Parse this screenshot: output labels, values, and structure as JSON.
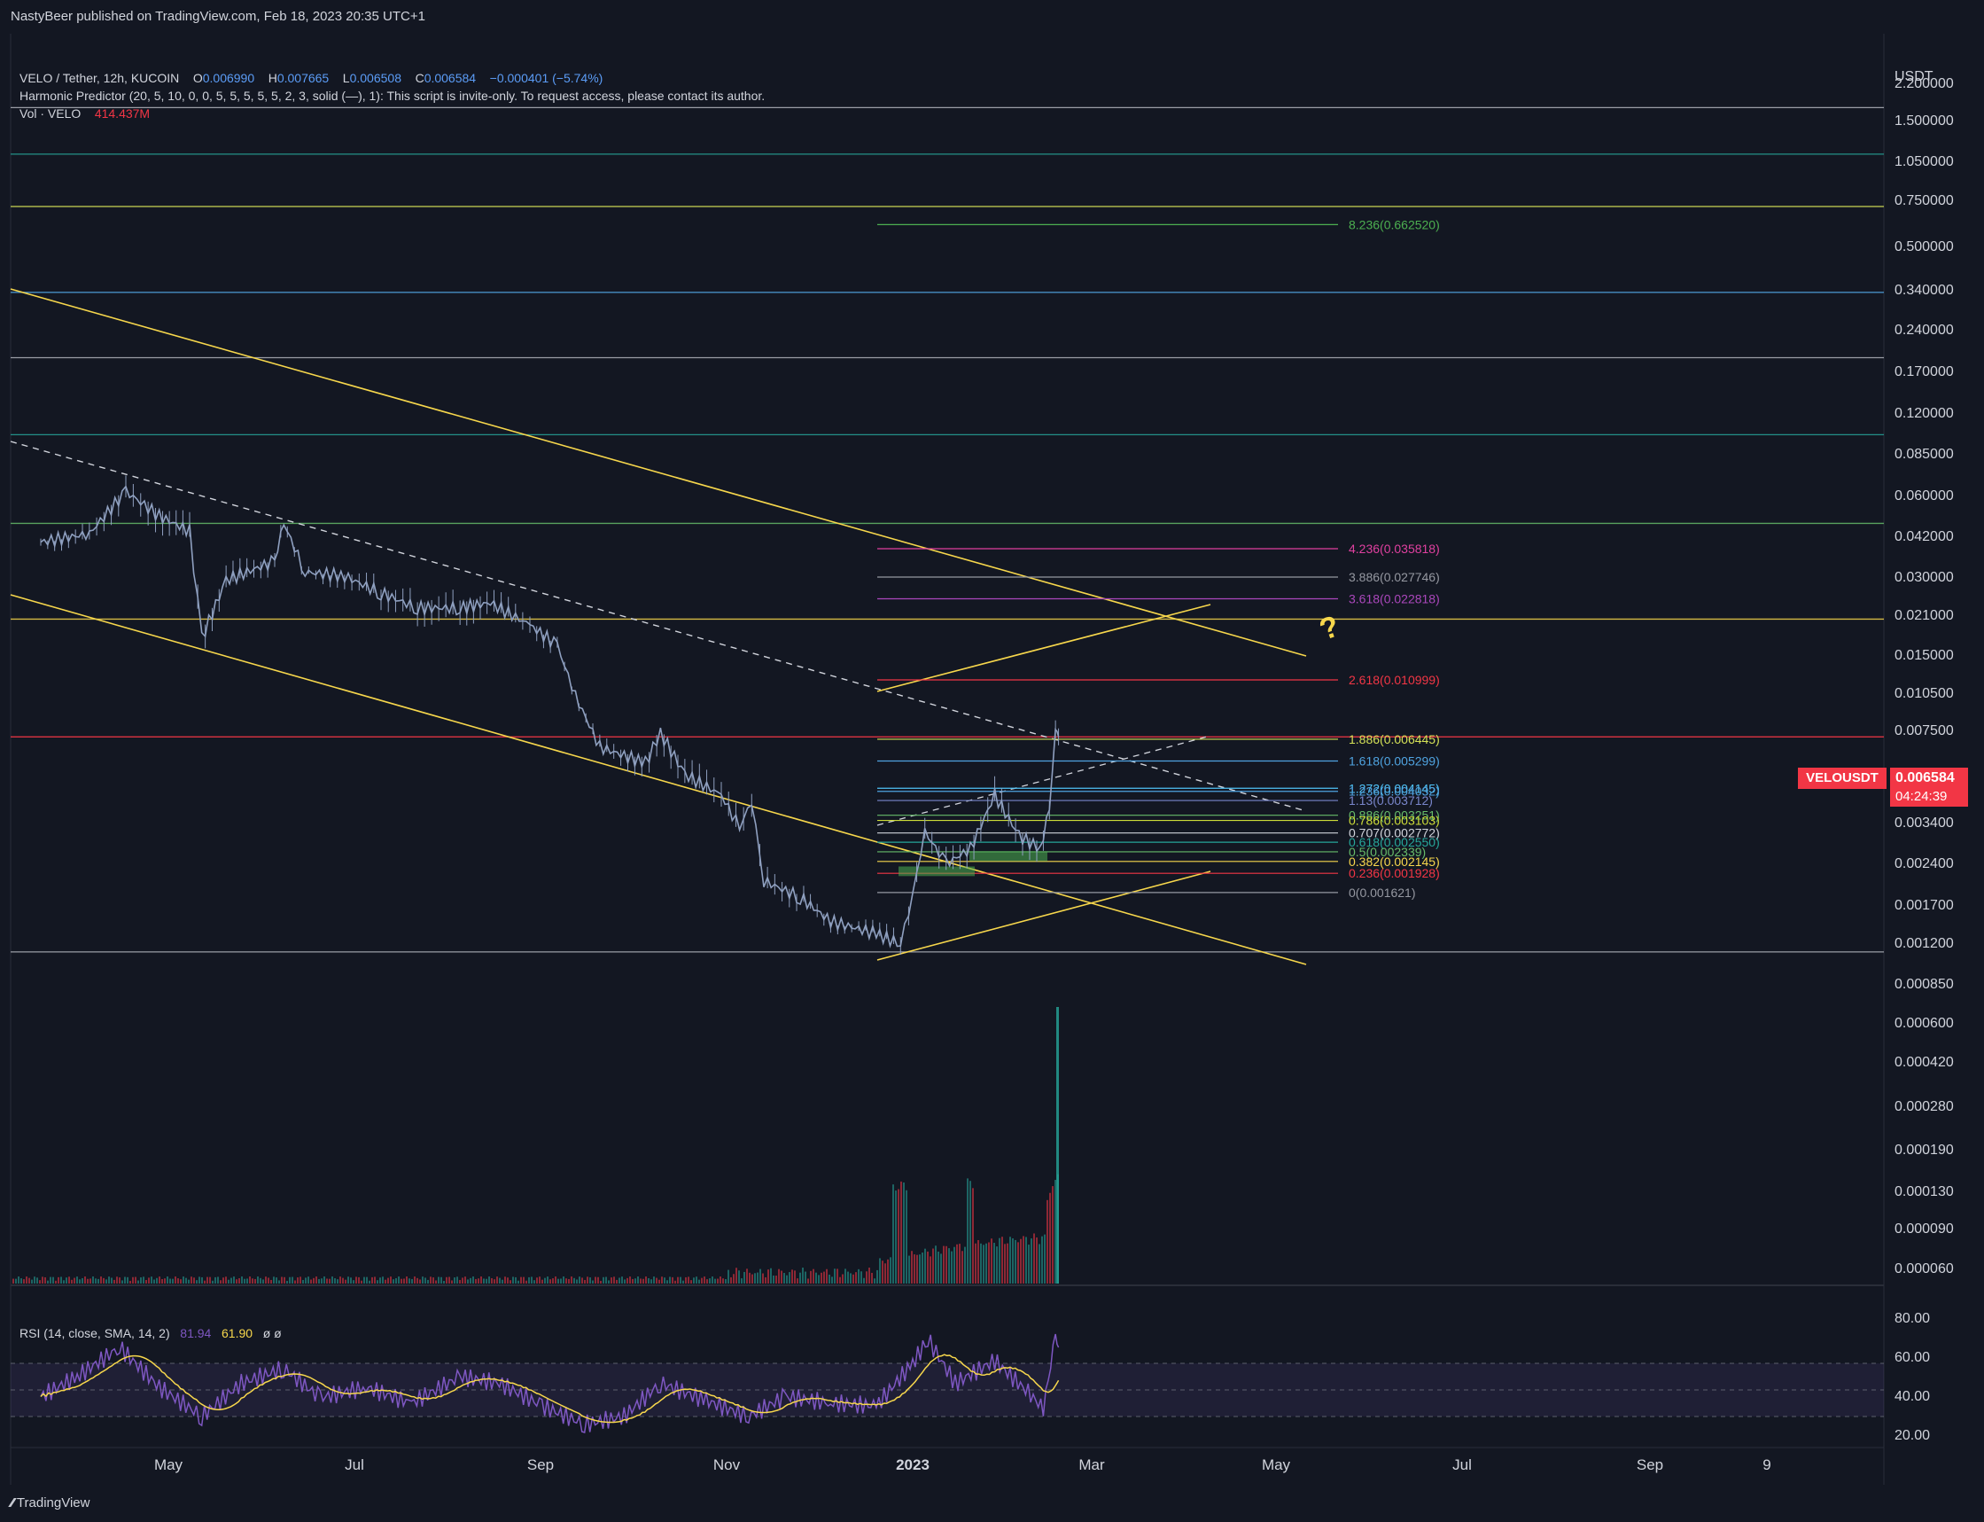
{
  "header": {
    "published": "NastyBeer published on TradingView.com, Feb 18, 2023 20:35 UTC+1"
  },
  "legend": {
    "symbol": "VELO / Tether, 12h, KUCOIN",
    "o_label": "O",
    "o": "0.006990",
    "h_label": "H",
    "h": "0.007665",
    "l_label": "L",
    "l": "0.006508",
    "c_label": "C",
    "c": "0.006584",
    "change": "−0.000401 (−5.74%)",
    "indicator": "Harmonic Predictor (20, 5, 10, 0, 0, 5, 5, 5, 5, 5, 2, 3, solid (—), 1): This script is invite-only. To request access, please contact its author.",
    "vol_label": "Vol · VELO",
    "vol_value": "414.437M"
  },
  "rsi_legend": {
    "label": "RSI (14, close, SMA, 14, 2)",
    "rsi": "81.94",
    "sma": "61.90",
    "extra": "ø  ø"
  },
  "axis": {
    "currency": "USDT",
    "price_ticks": [
      "2.200000",
      "1.500000",
      "1.050000",
      "0.750000",
      "0.500000",
      "0.340000",
      "0.240000",
      "0.170000",
      "0.120000",
      "0.085000",
      "0.060000",
      "0.042000",
      "0.030000",
      "0.021000",
      "0.015000",
      "0.010500",
      "0.007500",
      "0.003400",
      "0.002400",
      "0.001700",
      "0.001200",
      "0.000850",
      "0.000600",
      "0.000420",
      "0.000280",
      "0.000190",
      "0.000130",
      "0.000090",
      "0.000060"
    ],
    "rsi_ticks": [
      "80.00",
      "60.00",
      "40.00",
      "20.00"
    ],
    "time_ticks": [
      "May",
      "Jul",
      "Sep",
      "Nov",
      "2023",
      "Mar",
      "May",
      "Jul",
      "Sep",
      "9"
    ]
  },
  "badges": {
    "symbol": "VELOUSDT",
    "price": "0.006584",
    "countdown": "04:24:39"
  },
  "footer": {
    "brand": "TradingView"
  },
  "colors": {
    "bg": "#131722",
    "candle": "#8fa0c0",
    "yellow": "#f7d74c",
    "red": "#f23645",
    "rsi": "#7e57c2"
  },
  "chart_data": {
    "type": "line",
    "title": "VELO / Tether, 12h, KUCOIN",
    "scale": "log",
    "ylim": [
      0.00085,
      2.2
    ],
    "price_path": [
      {
        "t": "2022-03-20",
        "v": 0.038
      },
      {
        "t": "2022-04-05",
        "v": 0.041
      },
      {
        "t": "2022-04-17",
        "v": 0.06
      },
      {
        "t": "2022-04-28",
        "v": 0.048
      },
      {
        "t": "2022-05-08",
        "v": 0.042
      },
      {
        "t": "2022-05-12",
        "v": 0.016
      },
      {
        "t": "2022-05-20",
        "v": 0.027
      },
      {
        "t": "2022-06-05",
        "v": 0.032
      },
      {
        "t": "2022-06-08",
        "v": 0.045
      },
      {
        "t": "2022-06-15",
        "v": 0.029
      },
      {
        "t": "2022-06-28",
        "v": 0.028
      },
      {
        "t": "2022-07-10",
        "v": 0.024
      },
      {
        "t": "2022-07-22",
        "v": 0.021
      },
      {
        "t": "2022-08-05",
        "v": 0.021
      },
      {
        "t": "2022-08-15",
        "v": 0.022
      },
      {
        "t": "2022-08-28",
        "v": 0.018
      },
      {
        "t": "2022-09-06",
        "v": 0.015
      },
      {
        "t": "2022-09-12",
        "v": 0.0095
      },
      {
        "t": "2022-09-20",
        "v": 0.006
      },
      {
        "t": "2022-10-05",
        "v": 0.0052
      },
      {
        "t": "2022-10-10",
        "v": 0.0068
      },
      {
        "t": "2022-10-18",
        "v": 0.0047
      },
      {
        "t": "2022-10-30",
        "v": 0.0039
      },
      {
        "t": "2022-11-05",
        "v": 0.0029
      },
      {
        "t": "2022-11-09",
        "v": 0.0037
      },
      {
        "t": "2022-11-13",
        "v": 0.0018
      },
      {
        "t": "2022-11-25",
        "v": 0.00155
      },
      {
        "t": "2022-12-05",
        "v": 0.00125
      },
      {
        "t": "2022-12-20",
        "v": 0.00112
      },
      {
        "t": "2022-12-28",
        "v": 0.00102
      },
      {
        "t": "2023-01-01",
        "v": 0.0016
      },
      {
        "t": "2023-01-05",
        "v": 0.0028
      },
      {
        "t": "2023-01-12",
        "v": 0.0021
      },
      {
        "t": "2023-01-20",
        "v": 0.0024
      },
      {
        "t": "2023-01-28",
        "v": 0.0039
      },
      {
        "t": "2023-02-05",
        "v": 0.0027
      },
      {
        "t": "2023-02-12",
        "v": 0.0024
      },
      {
        "t": "2023-02-15",
        "v": 0.0034
      },
      {
        "t": "2023-02-17",
        "v": 0.0072
      },
      {
        "t": "2023-02-18",
        "v": 0.006584
      }
    ],
    "horizontal_levels": [
      {
        "price": 1.9,
        "color": "#b2b5be"
      },
      {
        "price": 1.25,
        "color": "#26a69a"
      },
      {
        "price": 0.78,
        "color": "#d4e157"
      },
      {
        "price": 0.36,
        "color": "#4fa3e0"
      },
      {
        "price": 0.2,
        "color": "#b2b5be"
      },
      {
        "price": 0.1,
        "color": "#26a69a"
      },
      {
        "price": 0.045,
        "color": "#66bb6a"
      },
      {
        "price": 0.019,
        "color": "#f7d74c"
      },
      {
        "price": 0.00095,
        "color": "#b2b5be"
      }
    ],
    "fib_levels": [
      {
        "label": "8.236(0.662520)",
        "price": 0.66252,
        "color": "#4caf50"
      },
      {
        "label": "4.236(0.035818)",
        "price": 0.035818,
        "color": "#e040a0"
      },
      {
        "label": "3.886(0.027746)",
        "price": 0.027746,
        "color": "#9598a1"
      },
      {
        "label": "3.618(0.022818)",
        "price": 0.022818,
        "color": "#ab47bc"
      },
      {
        "label": "2.618(0.010999)",
        "price": 0.010999,
        "color": "#f23645"
      },
      {
        "label": "1.886(0.006445)",
        "price": 0.006445,
        "color": "#d4e157"
      },
      {
        "label": "1.618(0.005299)",
        "price": 0.005299,
        "color": "#4fa3e0"
      },
      {
        "label": "1.272(0.004145)",
        "price": 0.004145,
        "color": "#4fc3f7"
      },
      {
        "label": "1.236(0.004032)",
        "price": 0.004032,
        "color": "#4fa3e0"
      },
      {
        "label": "1.13(0.003712)",
        "price": 0.003712,
        "color": "#7986cb"
      },
      {
        "label": "0.886(0.003251)",
        "price": 0.003251,
        "color": "#66bb6a"
      },
      {
        "label": "0.786(0.003103)",
        "price": 0.003103,
        "color": "#cddc39"
      },
      {
        "label": "0.707(0.002772)",
        "price": 0.002772,
        "color": "#d1d4dc"
      },
      {
        "label": "0.618(0.002550)",
        "price": 0.00255,
        "color": "#26a69a"
      },
      {
        "label": "0.5(0.002339)",
        "price": 0.002339,
        "color": "#66bb6a"
      },
      {
        "label": "0.382(0.002145)",
        "price": 0.002145,
        "color": "#f7d74c"
      },
      {
        "label": "0.236(0.001928)",
        "price": 0.001928,
        "color": "#f23645"
      },
      {
        "label": "0(0.001621)",
        "price": 0.001621,
        "color": "#9598a1"
      }
    ],
    "annotation": "?",
    "volume_peak": "414.437M",
    "rsi": {
      "ylim": [
        20,
        90
      ],
      "bands": [
        70,
        50,
        30
      ],
      "current": 81.94,
      "sma_current": 61.9,
      "path": [
        {
          "t": "2022-03-20",
          "v": 45
        },
        {
          "t": "2022-04-01",
          "v": 60
        },
        {
          "t": "2022-04-15",
          "v": 82
        },
        {
          "t": "2022-04-28",
          "v": 52
        },
        {
          "t": "2022-05-12",
          "v": 30
        },
        {
          "t": "2022-05-25",
          "v": 55
        },
        {
          "t": "2022-06-08",
          "v": 66
        },
        {
          "t": "2022-06-20",
          "v": 44
        },
        {
          "t": "2022-07-05",
          "v": 52
        },
        {
          "t": "2022-07-20",
          "v": 40
        },
        {
          "t": "2022-08-05",
          "v": 60
        },
        {
          "t": "2022-08-18",
          "v": 55
        },
        {
          "t": "2022-09-01",
          "v": 38
        },
        {
          "t": "2022-09-15",
          "v": 24
        },
        {
          "t": "2022-09-28",
          "v": 30
        },
        {
          "t": "2022-10-10",
          "v": 55
        },
        {
          "t": "2022-10-25",
          "v": 42
        },
        {
          "t": "2022-11-08",
          "v": 30
        },
        {
          "t": "2022-11-20",
          "v": 45
        },
        {
          "t": "2022-12-05",
          "v": 40
        },
        {
          "t": "2022-12-20",
          "v": 38
        },
        {
          "t": "2023-01-01",
          "v": 70
        },
        {
          "t": "2023-01-06",
          "v": 88
        },
        {
          "t": "2023-01-15",
          "v": 55
        },
        {
          "t": "2023-01-28",
          "v": 72
        },
        {
          "t": "2023-02-08",
          "v": 48
        },
        {
          "t": "2023-02-13",
          "v": 36
        },
        {
          "t": "2023-02-17",
          "v": 90
        },
        {
          "t": "2023-02-18",
          "v": 81.94
        }
      ]
    }
  }
}
